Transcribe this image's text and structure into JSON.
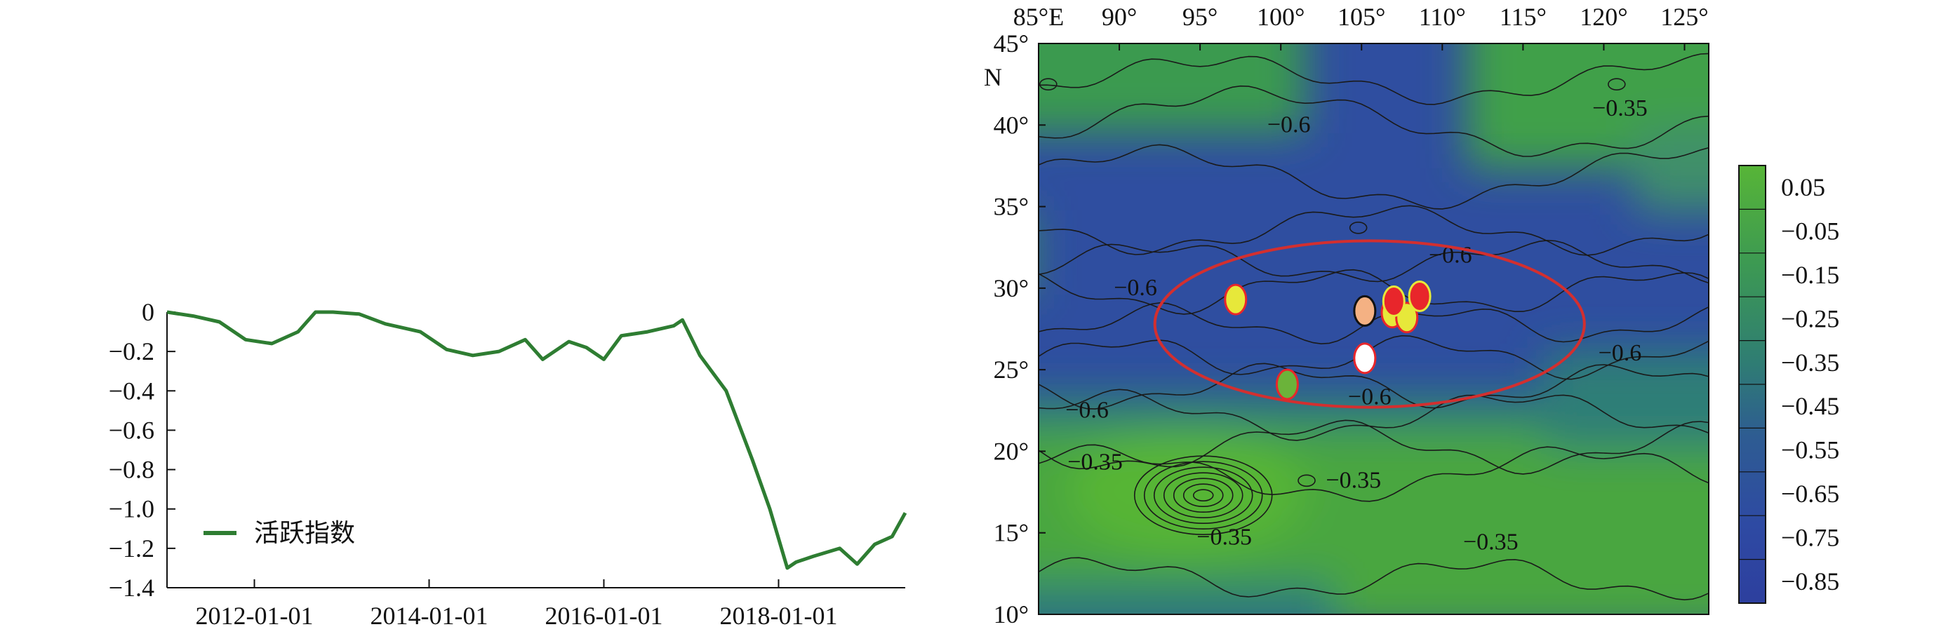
{
  "colors": {
    "line": "#2e7d32",
    "ellipse": "#d32f2f",
    "marker_red": "#e8262b",
    "marker_yellow": "#e7e83a",
    "marker_orange": "#f4b183",
    "marker_white": "#ffffff",
    "marker_green": "#6bb33a",
    "contour": "#1a1a1a"
  },
  "chart_data": [
    {
      "type": "line",
      "title": "",
      "xlabel": "",
      "ylabel": "",
      "legend": {
        "label": "活跃指数",
        "placement": "lower-left"
      },
      "xlim": [
        2011.0,
        2019.45
      ],
      "ylim": [
        -1.4,
        0
      ],
      "x_ticks": [
        {
          "value": 2012.0,
          "label": "2012-01-01"
        },
        {
          "value": 2014.0,
          "label": "2014-01-01"
        },
        {
          "value": 2016.0,
          "label": "2016-01-01"
        },
        {
          "value": 2018.0,
          "label": "2018-01-01"
        }
      ],
      "y_ticks": [
        {
          "value": 0,
          "label": "0"
        },
        {
          "value": -0.2,
          "label": "−0.2"
        },
        {
          "value": -0.4,
          "label": "−0.4"
        },
        {
          "value": -0.6,
          "label": "−0.6"
        },
        {
          "value": -0.8,
          "label": "−0.8"
        },
        {
          "value": -1.0,
          "label": "−1.0"
        },
        {
          "value": -1.2,
          "label": "−1.2"
        },
        {
          "value": -1.4,
          "label": "−1.4"
        }
      ],
      "series": [
        {
          "name": "活跃指数",
          "x": [
            2011.0,
            2011.3,
            2011.6,
            2011.9,
            2012.2,
            2012.5,
            2012.7,
            2012.9,
            2013.2,
            2013.5,
            2013.9,
            2014.2,
            2014.5,
            2014.8,
            2015.1,
            2015.3,
            2015.6,
            2015.8,
            2016.0,
            2016.2,
            2016.5,
            2016.8,
            2016.9,
            2017.1,
            2017.4,
            2017.7,
            2017.9,
            2018.1,
            2018.2,
            2018.4,
            2018.7,
            2018.9,
            2019.1,
            2019.3,
            2019.45
          ],
          "values": [
            0,
            -0.02,
            -0.05,
            -0.14,
            -0.16,
            -0.1,
            0,
            0,
            -0.01,
            -0.06,
            -0.1,
            -0.19,
            -0.22,
            -0.2,
            -0.14,
            -0.24,
            -0.15,
            -0.18,
            -0.24,
            -0.12,
            -0.1,
            -0.07,
            -0.04,
            -0.22,
            -0.4,
            -0.75,
            -1.0,
            -1.3,
            -1.27,
            -1.24,
            -1.2,
            -1.28,
            -1.18,
            -1.14,
            -1.02
          ]
        }
      ]
    },
    {
      "type": "heatmap",
      "title": "",
      "xlabel": "",
      "ylabel": "",
      "xlim": [
        85,
        126.5
      ],
      "ylim": [
        10,
        45
      ],
      "x_ticks": [
        {
          "value": 85,
          "label": "85°E"
        },
        {
          "value": 90,
          "label": "90°"
        },
        {
          "value": 95,
          "label": "95°"
        },
        {
          "value": 100,
          "label": "100°"
        },
        {
          "value": 105,
          "label": "105°"
        },
        {
          "value": 110,
          "label": "110°"
        },
        {
          "value": 115,
          "label": "115°"
        },
        {
          "value": 120,
          "label": "120°"
        },
        {
          "value": 125,
          "label": "125°"
        }
      ],
      "y_ticks": [
        {
          "value": 45,
          "label": "45°"
        },
        {
          "value": 40,
          "label": "40°"
        },
        {
          "value": 35,
          "label": "35°"
        },
        {
          "value": 30,
          "label": "30°"
        },
        {
          "value": 25,
          "label": "25°"
        },
        {
          "value": 20,
          "label": "20°"
        },
        {
          "value": 15,
          "label": "15°"
        },
        {
          "value": 10,
          "label": "10°"
        }
      ],
      "y_unit_label": "N",
      "colorbar": {
        "labels": [
          "0.05",
          "−0.05",
          "−0.15",
          "−0.25",
          "−0.35",
          "−0.45",
          "−0.55",
          "−0.65",
          "−0.75",
          "−0.85"
        ],
        "values": [
          0.05,
          -0.05,
          -0.15,
          -0.25,
          -0.35,
          -0.45,
          -0.55,
          -0.65,
          -0.75,
          -0.85
        ]
      },
      "contour_labels": [
        {
          "text": "−0.6",
          "lon": 100.5,
          "lat": 40.0
        },
        {
          "text": "−0.35",
          "lon": 121.0,
          "lat": 41.0
        },
        {
          "text": "−0.6",
          "lon": 110.5,
          "lat": 32.0
        },
        {
          "text": "−0.6",
          "lon": 91.0,
          "lat": 30.0
        },
        {
          "text": "−0.6",
          "lon": 121.0,
          "lat": 26.0
        },
        {
          "text": "−0.6",
          "lon": 105.5,
          "lat": 23.3
        },
        {
          "text": "−0.6",
          "lon": 88.0,
          "lat": 22.5
        },
        {
          "text": "−0.35",
          "lon": 88.5,
          "lat": 19.3
        },
        {
          "text": "−0.35",
          "lon": 104.5,
          "lat": 18.2
        },
        {
          "text": "−0.35",
          "lon": 96.5,
          "lat": 14.7
        },
        {
          "text": "−0.35",
          "lon": 113.0,
          "lat": 14.4
        }
      ],
      "ellipse": {
        "center_lon": 105.5,
        "center_lat": 27.8,
        "radius_lon": 13.3,
        "radius_lat": 5.1
      },
      "markers": [
        {
          "lon": 97.2,
          "lat": 29.3,
          "fill": "yellow",
          "stroke": "red"
        },
        {
          "lon": 105.2,
          "lat": 28.6,
          "fill": "orange",
          "stroke": "black"
        },
        {
          "lon": 106.9,
          "lat": 28.5,
          "fill": "yellow",
          "stroke": "red"
        },
        {
          "lon": 107.8,
          "lat": 28.2,
          "fill": "yellow",
          "stroke": "red"
        },
        {
          "lon": 107.0,
          "lat": 29.2,
          "fill": "red",
          "stroke": "yellow"
        },
        {
          "lon": 108.6,
          "lat": 29.5,
          "fill": "red",
          "stroke": "yellow"
        },
        {
          "lon": 105.2,
          "lat": 25.7,
          "fill": "white",
          "stroke": "red"
        },
        {
          "lon": 100.4,
          "lat": 24.1,
          "fill": "green",
          "stroke": "red"
        }
      ]
    }
  ]
}
